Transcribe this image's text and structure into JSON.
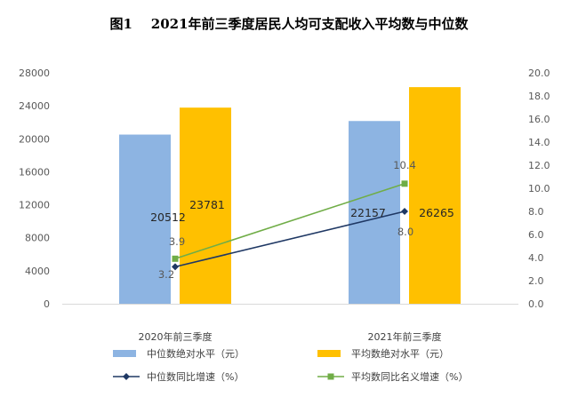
{
  "chart_data": {
    "type": "bar",
    "title": "图1    2021年前三季度居民人均可支配收入平均数与中位数",
    "categories": [
      "2020年前三季度",
      "2021年前三季度"
    ],
    "series": [
      {
        "name": "中位数绝对水平（元）",
        "type": "bar",
        "axis": "left",
        "values": [
          20512,
          22157
        ],
        "color": "#8DB4E2"
      },
      {
        "name": "平均数绝对水平（元）",
        "type": "bar",
        "axis": "left",
        "values": [
          23781,
          26265
        ],
        "color": "#FFC000"
      },
      {
        "name": "中位数同比增速（%）",
        "type": "line",
        "axis": "right",
        "values": [
          3.2,
          8.0
        ],
        "color": "#1F3864",
        "marker": "diamond"
      },
      {
        "name": "平均数同比名义增速（%）",
        "type": "line",
        "axis": "right",
        "values": [
          3.9,
          10.4
        ],
        "color": "#70AD47",
        "marker": "square"
      }
    ],
    "y_left": {
      "range": [
        0,
        28000
      ],
      "ticks": [
        "0",
        "4000",
        "8000",
        "12000",
        "16000",
        "20000",
        "24000",
        "28000"
      ]
    },
    "y_right": {
      "range": [
        0,
        20
      ],
      "ticks": [
        "0.0",
        "2.0",
        "4.0",
        "6.0",
        "8.0",
        "10.0",
        "12.0",
        "14.0",
        "16.0",
        "18.0",
        "20.0"
      ]
    },
    "bar_labels": [
      [
        "20512",
        "23781"
      ],
      [
        "22157",
        "26265"
      ]
    ],
    "line_labels": [
      [
        "3.2",
        "8.0"
      ],
      [
        "3.9",
        "10.4"
      ]
    ],
    "grid": false,
    "legend_position": "bottom"
  }
}
